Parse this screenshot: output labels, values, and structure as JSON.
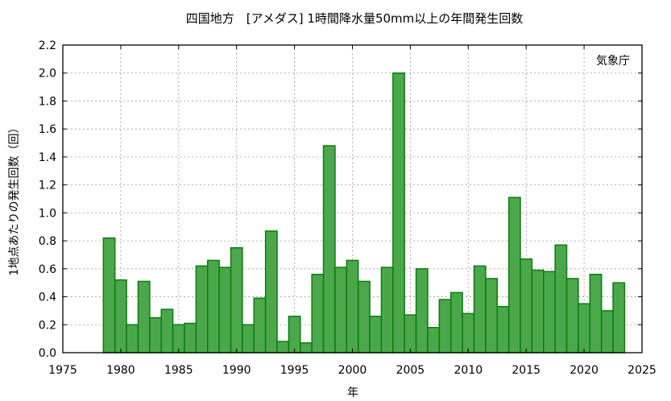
{
  "chart_data": {
    "type": "bar",
    "title": "四国地方　[アメダス] 1時間降水量50mm以上の年間発生回数",
    "xlabel": "年",
    "ylabel": "1地点あたりの発生回数（回）",
    "annotation": "気象庁",
    "xlim": [
      1975,
      2025
    ],
    "ylim": [
      0,
      2.2
    ],
    "xticks": [
      1975,
      1980,
      1985,
      1990,
      1995,
      2000,
      2005,
      2010,
      2015,
      2020,
      2025
    ],
    "yticks": [
      "0.0",
      "0.2",
      "0.4",
      "0.6",
      "0.8",
      "1.0",
      "1.2",
      "1.4",
      "1.6",
      "1.8",
      "2.0",
      "2.2"
    ],
    "grid": true,
    "bar_color": "#4aa84a",
    "bar_edge_color": "#0e7a12",
    "x": [
      1979,
      1980,
      1981,
      1982,
      1983,
      1984,
      1985,
      1986,
      1987,
      1988,
      1989,
      1990,
      1991,
      1992,
      1993,
      1994,
      1995,
      1996,
      1997,
      1998,
      1999,
      2000,
      2001,
      2002,
      2003,
      2004,
      2005,
      2006,
      2007,
      2008,
      2009,
      2010,
      2011,
      2012,
      2013,
      2014,
      2015,
      2016,
      2017,
      2018,
      2019,
      2020,
      2021,
      2022,
      2023
    ],
    "values": [
      0.82,
      0.52,
      0.2,
      0.51,
      0.25,
      0.31,
      0.2,
      0.21,
      0.62,
      0.66,
      0.61,
      0.75,
      0.2,
      0.39,
      0.87,
      0.08,
      0.26,
      0.07,
      0.56,
      1.48,
      0.61,
      0.66,
      0.51,
      0.26,
      0.61,
      2.0,
      0.27,
      0.6,
      0.18,
      0.38,
      0.43,
      0.28,
      0.62,
      0.53,
      0.33,
      1.11,
      0.67,
      0.59,
      0.58,
      0.77,
      0.53,
      0.35,
      0.56,
      0.3,
      0.5
    ]
  }
}
